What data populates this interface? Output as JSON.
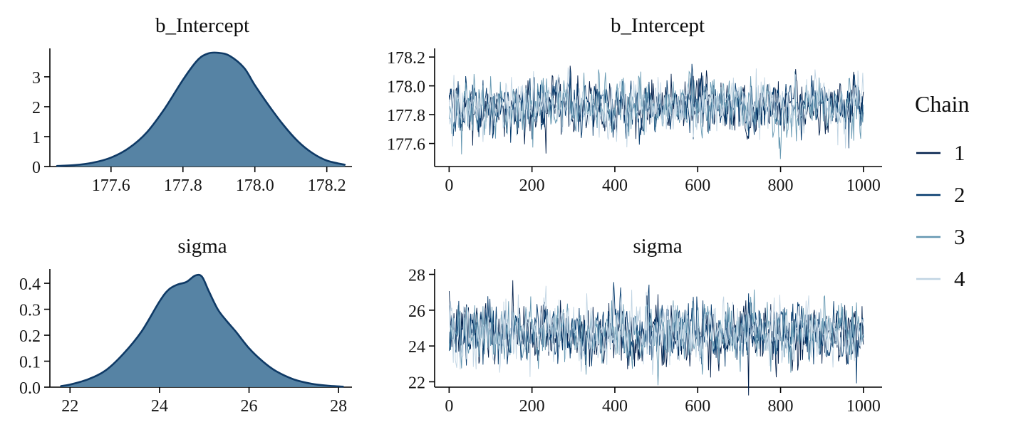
{
  "legend": {
    "title": "Chain",
    "entries": [
      {
        "label": "1",
        "color": "#011f4b"
      },
      {
        "label": "2",
        "color": "#03396c"
      },
      {
        "label": "3",
        "color": "#6497b1"
      },
      {
        "label": "4",
        "color": "#c0d4e3"
      }
    ]
  },
  "style": {
    "density_fill": "#4f7ea0",
    "density_stroke": "#0f3a66",
    "axis_color": "#000000"
  },
  "chart_data": [
    {
      "id": "density-b_Intercept",
      "type": "area",
      "title": "b_Intercept",
      "xlabel": "",
      "ylabel": "",
      "xlim": [
        177.43,
        178.27
      ],
      "ylim": [
        0,
        3.95
      ],
      "x_ticks": [
        177.6,
        177.8,
        178.0,
        178.2
      ],
      "x_tick_labels": [
        "177.6",
        "177.8",
        "178.0",
        "178.2"
      ],
      "y_ticks": [
        0,
        1,
        2,
        3
      ],
      "y_tick_labels": [
        "0",
        "1",
        "2",
        "3"
      ],
      "grid": false,
      "curve": {
        "x": [
          177.45,
          177.5,
          177.55,
          177.6,
          177.65,
          177.7,
          177.75,
          177.8,
          177.84,
          177.87,
          177.9,
          177.93,
          177.97,
          178.0,
          178.04,
          178.08,
          178.12,
          178.16,
          178.2,
          178.25
        ],
        "y": [
          0.02,
          0.05,
          0.13,
          0.3,
          0.62,
          1.15,
          1.95,
          2.9,
          3.55,
          3.78,
          3.8,
          3.7,
          3.3,
          2.72,
          2.02,
          1.38,
          0.84,
          0.45,
          0.2,
          0.06
        ]
      }
    },
    {
      "id": "trace-b_Intercept",
      "type": "line",
      "title": "b_Intercept",
      "xlabel": "",
      "ylabel": "",
      "xlim": [
        -35,
        1045
      ],
      "ylim": [
        177.44,
        178.26
      ],
      "x_ticks": [
        0,
        200,
        400,
        600,
        800,
        1000
      ],
      "x_tick_labels": [
        "0",
        "200",
        "400",
        "600",
        "800",
        "1000"
      ],
      "y_ticks": [
        177.6,
        177.8,
        178.0,
        178.2
      ],
      "y_tick_labels": [
        "177.6",
        "177.8",
        "178.0",
        "178.2"
      ],
      "grid": false,
      "n_points": 600,
      "x_range": [
        0,
        1000
      ],
      "series": [
        {
          "name": "1",
          "center": 177.86,
          "sd": 0.1,
          "phi": 0.35,
          "seed": 3
        },
        {
          "name": "2",
          "center": 177.86,
          "sd": 0.1,
          "phi": 0.35,
          "seed": 17
        },
        {
          "name": "3",
          "center": 177.86,
          "sd": 0.1,
          "phi": 0.35,
          "seed": 42
        },
        {
          "name": "4",
          "center": 177.86,
          "sd": 0.1,
          "phi": 0.35,
          "seed": 99
        }
      ]
    },
    {
      "id": "density-sigma",
      "type": "area",
      "title": "sigma",
      "xlabel": "",
      "ylabel": "",
      "xlim": [
        21.55,
        28.3
      ],
      "ylim": [
        0,
        0.455
      ],
      "x_ticks": [
        22,
        24,
        26,
        28
      ],
      "x_tick_labels": [
        "22",
        "24",
        "26",
        "28"
      ],
      "y_ticks": [
        0,
        0.1,
        0.2,
        0.3,
        0.4
      ],
      "y_tick_labels": [
        "0.0",
        "0.1",
        "0.2",
        "0.3",
        "0.4"
      ],
      "grid": false,
      "curve": {
        "x": [
          21.8,
          22.0,
          22.4,
          22.8,
          23.2,
          23.6,
          24.0,
          24.2,
          24.4,
          24.6,
          24.8,
          24.95,
          25.1,
          25.3,
          25.5,
          25.7,
          26.0,
          26.3,
          26.6,
          27.0,
          27.4,
          27.8,
          28.1
        ],
        "y": [
          0.004,
          0.01,
          0.03,
          0.065,
          0.13,
          0.215,
          0.33,
          0.375,
          0.395,
          0.405,
          0.43,
          0.425,
          0.37,
          0.3,
          0.255,
          0.215,
          0.15,
          0.1,
          0.062,
          0.03,
          0.013,
          0.005,
          0.002
        ]
      }
    },
    {
      "id": "trace-sigma",
      "type": "line",
      "title": "sigma",
      "xlabel": "",
      "ylabel": "",
      "xlim": [
        -35,
        1045
      ],
      "ylim": [
        21.7,
        28.3
      ],
      "x_ticks": [
        0,
        200,
        400,
        600,
        800,
        1000
      ],
      "x_tick_labels": [
        "0",
        "200",
        "400",
        "600",
        "800",
        "1000"
      ],
      "y_ticks": [
        22,
        24,
        26,
        28
      ],
      "y_tick_labels": [
        "22",
        "24",
        "26",
        "28"
      ],
      "grid": false,
      "n_points": 600,
      "x_range": [
        0,
        1000
      ],
      "series": [
        {
          "name": "1",
          "center": 24.75,
          "sd": 0.88,
          "phi": 0.3,
          "seed": 7
        },
        {
          "name": "2",
          "center": 24.75,
          "sd": 0.88,
          "phi": 0.3,
          "seed": 21
        },
        {
          "name": "3",
          "center": 24.75,
          "sd": 0.88,
          "phi": 0.3,
          "seed": 58
        },
        {
          "name": "4",
          "center": 24.75,
          "sd": 0.88,
          "phi": 0.3,
          "seed": 131
        }
      ]
    }
  ]
}
